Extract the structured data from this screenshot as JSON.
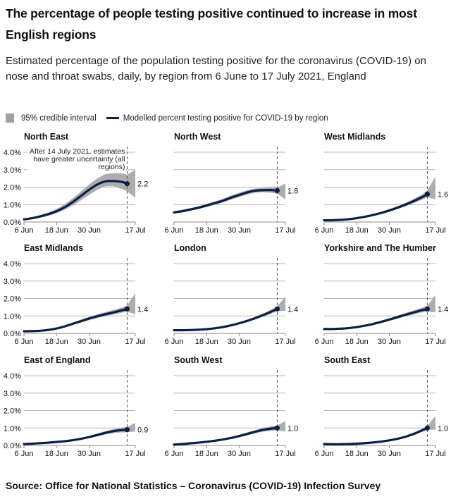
{
  "title": "The percentage of people testing positive continued to increase in most English regions",
  "subtitle": "Estimated percentage of the population testing positive for the coronavirus (COVID-19) on nose and throat swabs, daily, by region from 6 June to 17 July 2021, England",
  "legend": {
    "interval_label": "95% credible interval",
    "line_label": "Modelled percent testing positive for COVID-19 by region"
  },
  "source": "Source: Office for National Statistics – Coronavirus (COVID-19) Infection Survey",
  "colors": {
    "line": "#0a1f44",
    "band": "#a9a9a9",
    "grid": "#b5b5b5",
    "dashed": "#555555"
  },
  "chart_data": {
    "type": "line",
    "title": "Estimated percentage of the population testing positive for COVID-19 by region",
    "xlabel": "",
    "ylabel": "",
    "ylim": [
      0,
      4
    ],
    "y_ticks": [
      "0.0%",
      "1.0%",
      "2.0%",
      "3.0%",
      "4.0%"
    ],
    "y_tick_values": [
      0,
      1,
      2,
      3,
      4
    ],
    "x_ticks": [
      "6 Jun",
      "18 Jun",
      "30 Jun",
      "17 Jul"
    ],
    "x_tick_days": [
      0,
      12,
      24,
      41
    ],
    "x_range_days": [
      0,
      41
    ],
    "x_origin": "6 Jun 2021",
    "grid": true,
    "legend_position": "top-left",
    "annotation": {
      "text_lines": [
        "After 14 July 2021, estimates",
        "have greater uncertainty (all",
        "regions)"
      ],
      "marker_day": 38
    },
    "day_samples": [
      0,
      3,
      6,
      9,
      12,
      15,
      18,
      21,
      24,
      27,
      30,
      33,
      36,
      38
    ],
    "band_extension_days": [
      38,
      41
    ],
    "panels": [
      {
        "name": "North East",
        "label": "2.2",
        "values": [
          0.15,
          0.22,
          0.32,
          0.45,
          0.62,
          0.85,
          1.15,
          1.5,
          1.85,
          2.15,
          2.33,
          2.35,
          2.3,
          2.2
        ],
        "lower": [
          0.1,
          0.16,
          0.25,
          0.36,
          0.5,
          0.7,
          0.95,
          1.25,
          1.55,
          1.85,
          2.05,
          2.05,
          1.9,
          1.75
        ],
        "upper": [
          0.2,
          0.28,
          0.4,
          0.55,
          0.75,
          1.02,
          1.36,
          1.75,
          2.15,
          2.5,
          2.75,
          2.8,
          2.8,
          2.7
        ],
        "band_end": [
          1.4,
          3.0
        ]
      },
      {
        "name": "North West",
        "label": "1.8",
        "values": [
          0.55,
          0.62,
          0.72,
          0.82,
          0.95,
          1.08,
          1.22,
          1.4,
          1.55,
          1.7,
          1.8,
          1.83,
          1.83,
          1.8
        ],
        "lower": [
          0.48,
          0.55,
          0.65,
          0.74,
          0.86,
          0.98,
          1.12,
          1.28,
          1.43,
          1.58,
          1.68,
          1.7,
          1.68,
          1.62
        ],
        "upper": [
          0.62,
          0.7,
          0.8,
          0.9,
          1.04,
          1.18,
          1.33,
          1.52,
          1.68,
          1.83,
          1.92,
          1.96,
          1.98,
          1.97
        ],
        "band_end": [
          1.3,
          2.2
        ]
      },
      {
        "name": "West Midlands",
        "label": "1.6",
        "values": [
          0.1,
          0.1,
          0.12,
          0.16,
          0.22,
          0.3,
          0.4,
          0.52,
          0.66,
          0.82,
          1.0,
          1.2,
          1.42,
          1.6
        ],
        "lower": [
          0.08,
          0.08,
          0.1,
          0.13,
          0.18,
          0.26,
          0.35,
          0.46,
          0.59,
          0.74,
          0.9,
          1.08,
          1.28,
          1.42
        ],
        "upper": [
          0.12,
          0.12,
          0.14,
          0.19,
          0.26,
          0.35,
          0.46,
          0.59,
          0.74,
          0.91,
          1.1,
          1.33,
          1.58,
          1.8
        ],
        "band_end": [
          1.3,
          2.6
        ]
      },
      {
        "name": "East Midlands",
        "label": "1.4",
        "values": [
          0.12,
          0.13,
          0.15,
          0.2,
          0.28,
          0.4,
          0.55,
          0.7,
          0.85,
          0.98,
          1.1,
          1.2,
          1.32,
          1.4
        ],
        "lower": [
          0.1,
          0.11,
          0.13,
          0.17,
          0.24,
          0.35,
          0.48,
          0.62,
          0.76,
          0.88,
          0.99,
          1.08,
          1.18,
          1.25
        ],
        "upper": [
          0.14,
          0.15,
          0.17,
          0.23,
          0.32,
          0.46,
          0.62,
          0.79,
          0.95,
          1.09,
          1.22,
          1.35,
          1.48,
          1.6
        ],
        "band_end": [
          1.1,
          2.3
        ]
      },
      {
        "name": "London",
        "label": "1.4",
        "values": [
          0.18,
          0.18,
          0.19,
          0.21,
          0.24,
          0.29,
          0.36,
          0.46,
          0.58,
          0.72,
          0.88,
          1.06,
          1.26,
          1.4
        ],
        "lower": [
          0.16,
          0.16,
          0.17,
          0.19,
          0.22,
          0.26,
          0.33,
          0.42,
          0.53,
          0.66,
          0.81,
          0.97,
          1.15,
          1.27
        ],
        "upper": [
          0.2,
          0.2,
          0.21,
          0.23,
          0.27,
          0.32,
          0.4,
          0.5,
          0.63,
          0.78,
          0.96,
          1.15,
          1.38,
          1.55
        ],
        "band_end": [
          1.3,
          2.1
        ]
      },
      {
        "name": "Yorkshire and The Humber",
        "label": "1.4",
        "values": [
          0.25,
          0.25,
          0.27,
          0.3,
          0.36,
          0.44,
          0.54,
          0.66,
          0.79,
          0.93,
          1.07,
          1.2,
          1.33,
          1.4
        ],
        "lower": [
          0.22,
          0.22,
          0.24,
          0.27,
          0.32,
          0.39,
          0.48,
          0.59,
          0.71,
          0.84,
          0.97,
          1.09,
          1.2,
          1.25
        ],
        "upper": [
          0.28,
          0.28,
          0.3,
          0.33,
          0.4,
          0.49,
          0.6,
          0.73,
          0.87,
          1.02,
          1.17,
          1.32,
          1.47,
          1.58
        ],
        "band_end": [
          1.2,
          2.2
        ]
      },
      {
        "name": "East of England",
        "label": "0.9",
        "values": [
          0.08,
          0.1,
          0.13,
          0.16,
          0.2,
          0.24,
          0.3,
          0.38,
          0.48,
          0.6,
          0.72,
          0.82,
          0.88,
          0.9
        ],
        "lower": [
          0.06,
          0.08,
          0.11,
          0.14,
          0.17,
          0.21,
          0.26,
          0.33,
          0.42,
          0.52,
          0.63,
          0.71,
          0.75,
          0.76
        ],
        "upper": [
          0.1,
          0.12,
          0.15,
          0.18,
          0.23,
          0.28,
          0.34,
          0.43,
          0.54,
          0.68,
          0.82,
          0.94,
          1.02,
          1.06
        ],
        "band_end": [
          0.8,
          1.3
        ]
      },
      {
        "name": "South West",
        "label": "1.0",
        "values": [
          0.05,
          0.08,
          0.12,
          0.16,
          0.21,
          0.27,
          0.34,
          0.43,
          0.54,
          0.66,
          0.79,
          0.9,
          0.97,
          1.0
        ],
        "lower": [
          0.04,
          0.06,
          0.1,
          0.14,
          0.18,
          0.23,
          0.3,
          0.38,
          0.48,
          0.58,
          0.7,
          0.8,
          0.85,
          0.86
        ],
        "upper": [
          0.06,
          0.1,
          0.14,
          0.18,
          0.24,
          0.31,
          0.39,
          0.49,
          0.61,
          0.75,
          0.89,
          1.01,
          1.1,
          1.14
        ],
        "band_end": [
          0.8,
          1.4
        ]
      },
      {
        "name": "South East",
        "label": "1.0",
        "values": [
          0.08,
          0.07,
          0.07,
          0.08,
          0.1,
          0.13,
          0.17,
          0.22,
          0.29,
          0.38,
          0.5,
          0.66,
          0.86,
          1.0
        ],
        "lower": [
          0.06,
          0.05,
          0.05,
          0.06,
          0.08,
          0.11,
          0.15,
          0.19,
          0.26,
          0.34,
          0.45,
          0.59,
          0.77,
          0.9
        ],
        "upper": [
          0.1,
          0.09,
          0.09,
          0.1,
          0.12,
          0.15,
          0.19,
          0.25,
          0.32,
          0.42,
          0.55,
          0.73,
          0.95,
          1.12
        ],
        "band_end": [
          0.9,
          1.7
        ]
      }
    ]
  }
}
